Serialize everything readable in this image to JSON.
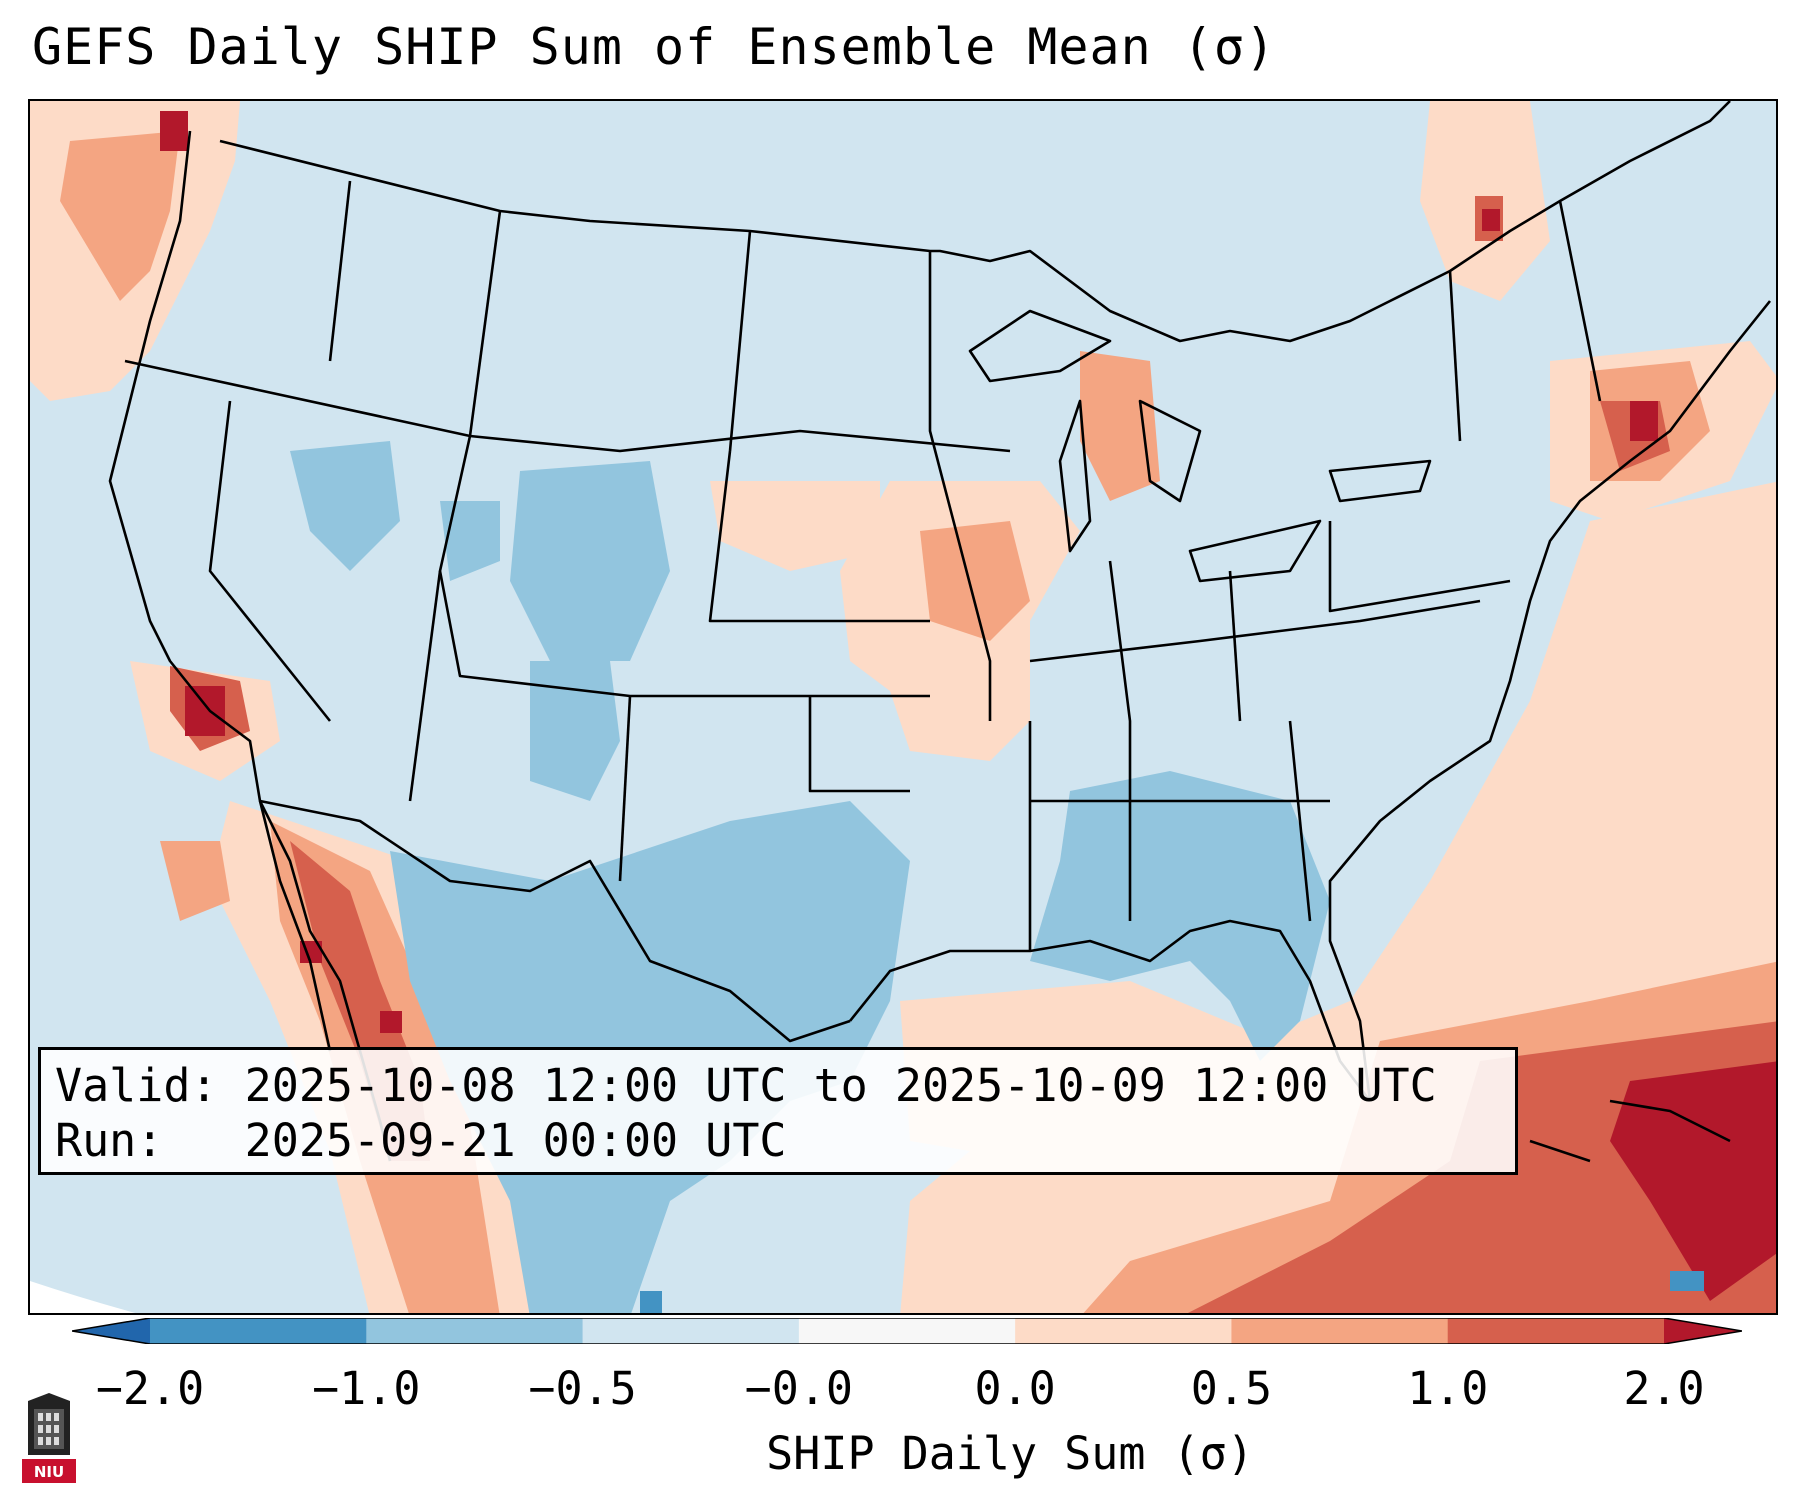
{
  "title": "GEFS Daily SHIP Sum of Ensemble Mean (σ)",
  "info": {
    "valid_label": "Valid:",
    "valid_value": "2025-10-08 12:00 UTC to 2025-10-09 12:00 UTC",
    "run_label": "Run:",
    "run_value": "2025-09-21 00:00 UTC"
  },
  "colorbar": {
    "label": "SHIP Daily Sum (σ)",
    "ticks": [
      "−2.0",
      "−1.0",
      "−0.5",
      "−0.0",
      "0.0",
      "0.5",
      "1.0",
      "2.0"
    ],
    "bins": [
      {
        "color": "#4393c3"
      },
      {
        "color": "#92c5de"
      },
      {
        "color": "#d1e5f0"
      },
      {
        "color": "#f7f7f7"
      },
      {
        "color": "#fddbc7"
      },
      {
        "color": "#f4a582"
      },
      {
        "color": "#d6604d"
      }
    ],
    "under_color": "#2166ac",
    "over_color": "#b2182b"
  },
  "logo": {
    "text": "NIU",
    "color": "#c8102e"
  },
  "icons": {
    "logo": "niu-tower-logo"
  }
}
